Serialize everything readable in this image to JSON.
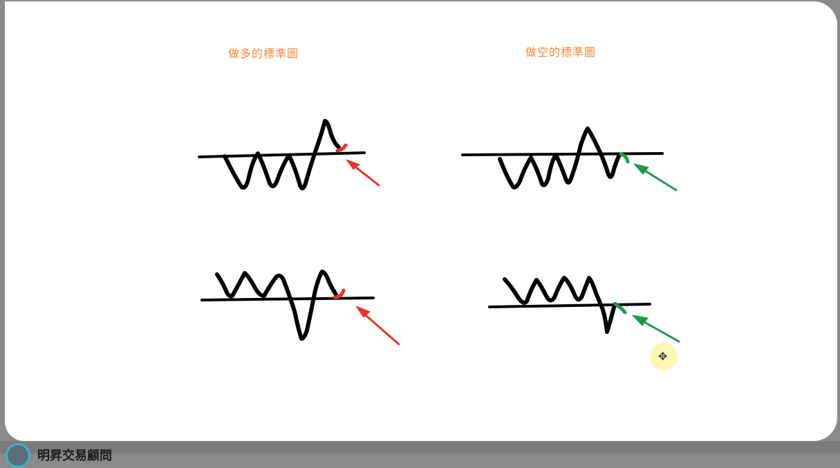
{
  "slide": {
    "title_long": "做多的標準圖",
    "title_short": "做空的標準圖",
    "title_color": "#f0883a"
  },
  "colors": {
    "line": "#000000",
    "long_highlight": "#e8332e",
    "short_highlight": "#1e9a4e"
  },
  "footer": {
    "channel_name": "明昇交易顧問"
  },
  "cursor": {
    "glyph": "✥"
  }
}
